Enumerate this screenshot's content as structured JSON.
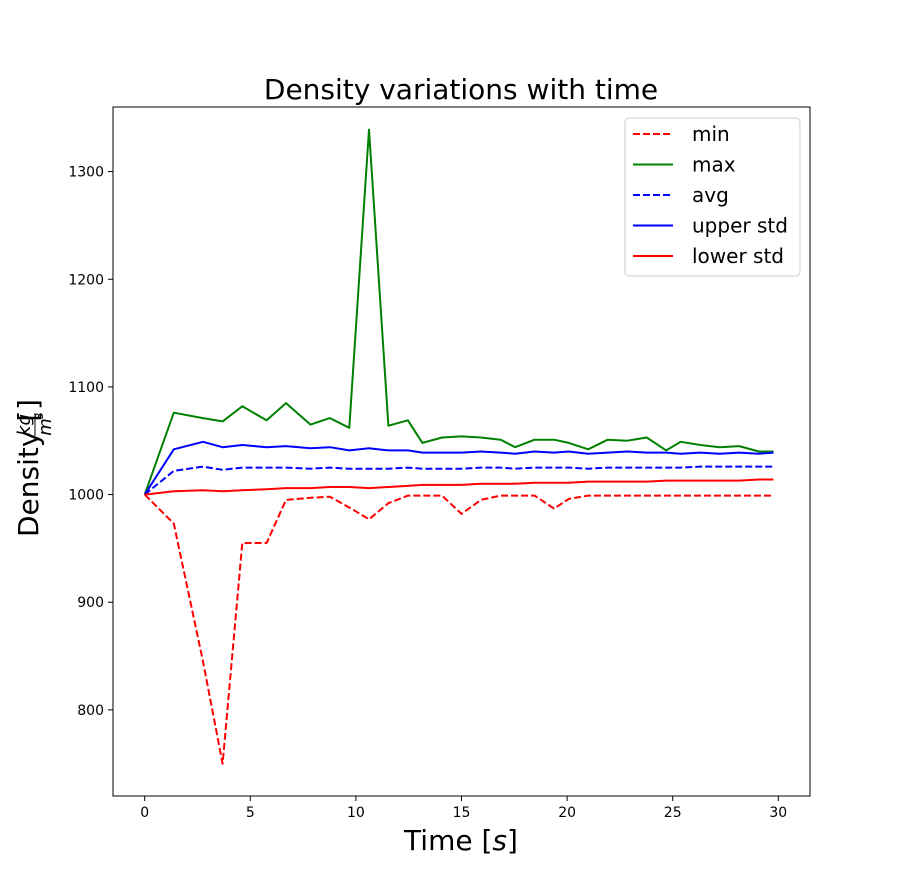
{
  "chart_data": {
    "type": "line",
    "title": "Density variations with time",
    "xlabel": "Time [s]",
    "ylabel": "Density [kg/m³]",
    "xlim": [
      -1.5,
      31.5
    ],
    "ylim": [
      720,
      1360
    ],
    "xticks": [
      0,
      5,
      10,
      15,
      20,
      25,
      30
    ],
    "yticks": [
      800,
      900,
      1000,
      1100,
      1200,
      1300
    ],
    "grid": false,
    "legend_position": "top-right",
    "x": [
      0,
      1.38,
      2.76,
      3.69,
      4.62,
      5.77,
      6.69,
      7.85,
      8.77,
      9.69,
      10.62,
      11.54,
      12.46,
      13.15,
      14.08,
      15.0,
      15.92,
      16.85,
      17.54,
      18.46,
      19.38,
      20.08,
      21.0,
      21.92,
      22.85,
      23.77,
      24.69,
      25.38,
      26.31,
      27.23,
      28.15,
      29.08,
      29.77
    ],
    "series": [
      {
        "name": "min",
        "color": "#ff0000",
        "dash": "dashed",
        "values": [
          1000,
          973,
          845,
          750,
          955,
          955,
          995,
          997,
          998,
          988,
          977,
          992,
          999,
          999,
          999,
          982,
          995,
          999,
          999,
          999,
          987,
          996,
          999,
          999,
          999,
          999,
          999,
          999,
          999,
          999,
          999,
          999,
          999
        ]
      },
      {
        "name": "max",
        "color": "#008000",
        "dash": "solid",
        "values": [
          1000,
          1076,
          1071,
          1068,
          1082,
          1069,
          1085,
          1065,
          1071,
          1062,
          1339,
          1064,
          1069,
          1048,
          1053,
          1054,
          1053,
          1051,
          1044,
          1051,
          1051,
          1048,
          1042,
          1051,
          1050,
          1053,
          1041,
          1049,
          1046,
          1044,
          1045,
          1040,
          1040
        ]
      },
      {
        "name": "avg",
        "color": "#0000ff",
        "dash": "dashed",
        "values": [
          1000,
          1022,
          1026,
          1023,
          1025,
          1025,
          1025,
          1024,
          1025,
          1024,
          1024,
          1024,
          1025,
          1024,
          1024,
          1024,
          1025,
          1025,
          1024,
          1025,
          1025,
          1025,
          1024,
          1025,
          1025,
          1025,
          1025,
          1025,
          1026,
          1026,
          1026,
          1026,
          1026
        ]
      },
      {
        "name": "upper std",
        "color": "#0000ff",
        "dash": "solid",
        "values": [
          1000,
          1042,
          1049,
          1044,
          1046,
          1044,
          1045,
          1043,
          1044,
          1041,
          1043,
          1041,
          1041,
          1039,
          1039,
          1039,
          1040,
          1039,
          1038,
          1040,
          1039,
          1040,
          1038,
          1039,
          1040,
          1039,
          1039,
          1038,
          1039,
          1038,
          1039,
          1038,
          1039
        ]
      },
      {
        "name": "lower std",
        "color": "#ff0000",
        "dash": "solid",
        "values": [
          1000,
          1003,
          1004,
          1003,
          1004,
          1005,
          1006,
          1006,
          1007,
          1007,
          1006,
          1007,
          1008,
          1009,
          1009,
          1009,
          1010,
          1010,
          1010,
          1011,
          1011,
          1011,
          1012,
          1012,
          1012,
          1012,
          1013,
          1013,
          1013,
          1013,
          1013,
          1014,
          1014
        ]
      }
    ]
  }
}
